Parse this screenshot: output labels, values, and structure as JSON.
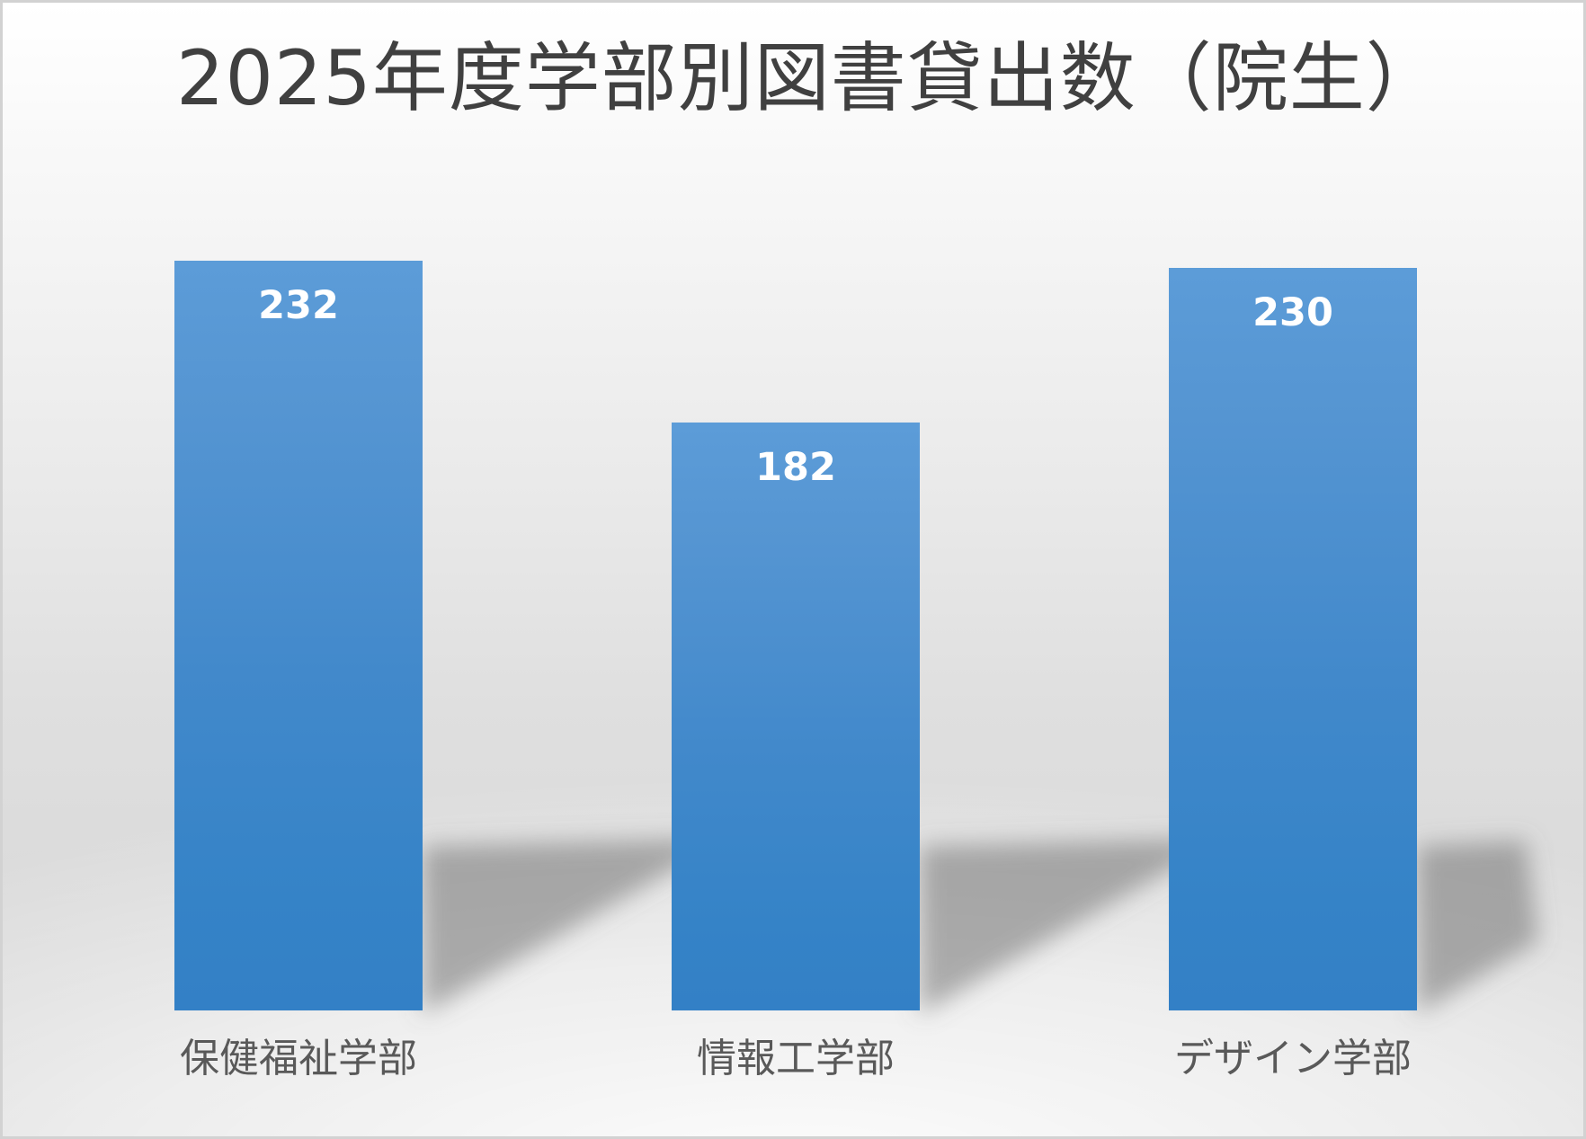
{
  "title": "2025年度学部別図書貸出数（院生）",
  "chart_data": {
    "type": "bar",
    "title": "2025年度学部別図書貸出数（院生）",
    "categories": [
      "保健福祉学部",
      "情報工学部",
      "デザイン学部"
    ],
    "values": [
      232,
      182,
      230
    ],
    "data_labels": [
      232,
      182,
      230
    ],
    "xlabel": "",
    "ylabel": "",
    "ylim": [
      0,
      250
    ],
    "grid": false,
    "legend": false,
    "axes_visible": false,
    "bar_color_top": "#5C9CD8",
    "bar_color_bottom": "#3380C6",
    "value_label_color": "#FFFFFF",
    "category_label_color": "#595959",
    "title_color": "#404040",
    "background_style": "light gray gradient with perspective bar shadows"
  }
}
